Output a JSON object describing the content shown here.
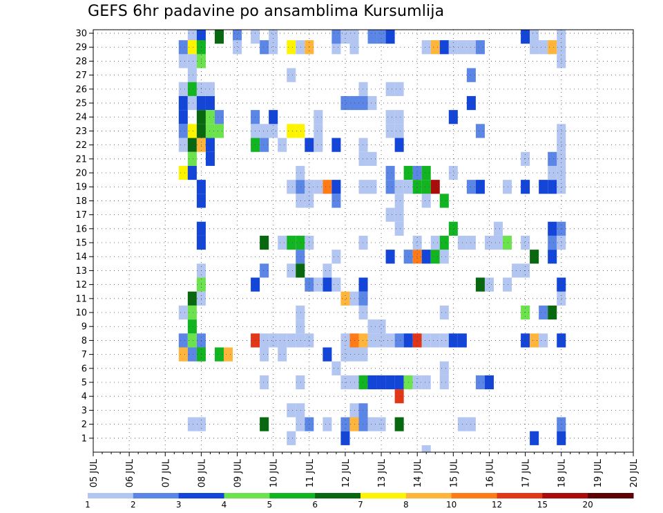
{
  "chart_data": {
    "type": "heatmap",
    "title": "GEFS 6hr padavine po ansamblima Kursumlija",
    "xlabel": "",
    "ylabel": "",
    "x_ticks": [
      "05 JUL",
      "06 JUL",
      "07 JUL",
      "08 JUL",
      "09 JUL",
      "10 JUL",
      "11 JUL",
      "12 JUL",
      "13 JUL",
      "14 JUL",
      "15 JUL",
      "16 JUL",
      "17 JUL",
      "18 JUL",
      "19 JUL",
      "20 JUL"
    ],
    "x_start_day": 5,
    "x_end_day": 20,
    "y_ticks": [
      1,
      2,
      3,
      4,
      5,
      6,
      7,
      8,
      9,
      10,
      11,
      12,
      13,
      14,
      15,
      16,
      17,
      18,
      19,
      20,
      21,
      22,
      23,
      24,
      25,
      26,
      27,
      28,
      29,
      30
    ],
    "ylim": [
      0,
      30
    ],
    "grid": true,
    "colorbar": {
      "placement": "bottom",
      "labels": [
        "1",
        "2",
        "3",
        "4",
        "5",
        "6",
        "7",
        "8",
        "10",
        "12",
        "15",
        "20"
      ],
      "colors": [
        "#b3c6f2",
        "#5b86e6",
        "#1346d8",
        "#6ce34e",
        "#13b421",
        "#08680f",
        "#fff400",
        "#ffb43c",
        "#ff7a18",
        "#e13617",
        "#a80d0c",
        "#5c0306"
      ]
    },
    "cells": [
      [
        29,
        3,
        1
      ],
      [
        28,
        8,
        1
      ],
      [
        27,
        6,
        1
      ],
      [
        26,
        2,
        1
      ],
      [
        26,
        7,
        3
      ],
      [
        22,
        8,
        1
      ],
      [
        22,
        13,
        1
      ],
      [
        22,
        1,
        1
      ],
      [
        30,
        11,
        2
      ],
      [
        29,
        11,
        1
      ],
      [
        29,
        29,
        1
      ],
      [
        27,
        29,
        1
      ],
      [
        27,
        30,
        2
      ],
      [
        28,
        30,
        1
      ],
      [
        29,
        30,
        1
      ],
      [
        29,
        25,
        2
      ],
      [
        28,
        25,
        2
      ],
      [
        28,
        1,
        3
      ],
      [
        11,
        30,
        1
      ],
      [
        12,
        30,
        3
      ],
      [
        14,
        30,
        6
      ],
      [
        16,
        30,
        2
      ],
      [
        16,
        29,
        1
      ],
      [
        22,
        27,
        1
      ],
      [
        19,
        29,
        2
      ],
      [
        20,
        29,
        1
      ],
      [
        22,
        29,
        7
      ],
      [
        23,
        29,
        1
      ],
      [
        24,
        29,
        8
      ],
      [
        10,
        28,
        1
      ],
      [
        10,
        29,
        2
      ],
      [
        10,
        26,
        1
      ],
      [
        10,
        25,
        3
      ],
      [
        10,
        24,
        3
      ],
      [
        10,
        23,
        2
      ],
      [
        10,
        22,
        1
      ],
      [
        10,
        20,
        7
      ],
      [
        11,
        27,
        1
      ],
      [
        10,
        10,
        1
      ],
      [
        11,
        29,
        7
      ],
      [
        11,
        28,
        1
      ],
      [
        11,
        26,
        5
      ],
      [
        11,
        25,
        1
      ],
      [
        11,
        22,
        6
      ],
      [
        11,
        21,
        4
      ],
      [
        11,
        20,
        3
      ],
      [
        10,
        8,
        2
      ],
      [
        11,
        11,
        6
      ],
      [
        10,
        7,
        8
      ],
      [
        11,
        7,
        2
      ],
      [
        10,
        8,
        3
      ],
      [
        11,
        8,
        4
      ],
      [
        11,
        9,
        5
      ],
      [
        11,
        23,
        7
      ],
      [
        11,
        2,
        1
      ],
      [
        11,
        8,
        4
      ],
      [
        11,
        10,
        4
      ],
      [
        11,
        11,
        6
      ],
      [
        12,
        8,
        2
      ],
      [
        12,
        25,
        3
      ],
      [
        11,
        -1,
        1
      ],
      [
        12,
        13,
        1
      ],
      [
        12,
        -1,
        1
      ],
      [
        12,
        28,
        4
      ],
      [
        12,
        29,
        5
      ],
      [
        12,
        25,
        5
      ],
      [
        12,
        23,
        6
      ],
      [
        12,
        22,
        8
      ],
      [
        12,
        24,
        6
      ],
      [
        12,
        19,
        3
      ],
      [
        12,
        18,
        3
      ],
      [
        12,
        16,
        3
      ],
      [
        12,
        15,
        3
      ],
      [
        12,
        12,
        4
      ],
      [
        12,
        11,
        1
      ],
      [
        12,
        7,
        5
      ],
      [
        12,
        2,
        1
      ],
      [
        12,
        26,
        1
      ],
      [
        13,
        25,
        3
      ],
      [
        12,
        24,
        5
      ],
      [
        13,
        24,
        4
      ],
      [
        13,
        23,
        4
      ],
      [
        14,
        23,
        4
      ],
      [
        14,
        24,
        2
      ],
      [
        13,
        22,
        3
      ],
      [
        13,
        21,
        3
      ],
      [
        13,
        26,
        1
      ],
      [
        14,
        7,
        5
      ],
      [
        15,
        7,
        8
      ],
      [
        16,
        30,
        1
      ],
      [
        16,
        29,
        1
      ],
      [
        18,
        30,
        1
      ],
      [
        18,
        24,
        2
      ],
      [
        18,
        23,
        1
      ],
      [
        19,
        23,
        1
      ],
      [
        18,
        22,
        5
      ],
      [
        18,
        12,
        3
      ],
      [
        18,
        8,
        10
      ],
      [
        19,
        22,
        2
      ],
      [
        19,
        15,
        6
      ],
      [
        19,
        13,
        2
      ],
      [
        19,
        5,
        1
      ],
      [
        19,
        2,
        6
      ],
      [
        19,
        8,
        1
      ],
      [
        19,
        7,
        1
      ],
      [
        20,
        30,
        1
      ],
      [
        20,
        23,
        1
      ],
      [
        20,
        24,
        3
      ],
      [
        20,
        8,
        1
      ],
      [
        21,
        8,
        1
      ],
      [
        21,
        7,
        1
      ],
      [
        21,
        15,
        1
      ],
      [
        21,
        22,
        1
      ],
      [
        22,
        23,
        7
      ],
      [
        23,
        23,
        7
      ],
      [
        22,
        15,
        5
      ],
      [
        23,
        15,
        5
      ],
      [
        22,
        19,
        1
      ],
      [
        23,
        19,
        2
      ],
      [
        24,
        19,
        1
      ],
      [
        23,
        20,
        1
      ],
      [
        23,
        18,
        1
      ],
      [
        24,
        18,
        1
      ],
      [
        23,
        14,
        2
      ],
      [
        23,
        13,
        6
      ],
      [
        24,
        12,
        2
      ],
      [
        23,
        10,
        1
      ],
      [
        24,
        8,
        1
      ],
      [
        23,
        9,
        1
      ],
      [
        23,
        8,
        1
      ],
      [
        22,
        8,
        1
      ],
      [
        22,
        3,
        1
      ],
      [
        23,
        3,
        1
      ],
      [
        23,
        2,
        1
      ],
      [
        24,
        2,
        2
      ],
      [
        23,
        5,
        1
      ],
      [
        24,
        22,
        3
      ],
      [
        25,
        22,
        1
      ],
      [
        25,
        23,
        1
      ],
      [
        24,
        15,
        1
      ],
      [
        25,
        24,
        1
      ],
      [
        25,
        19,
        1
      ],
      [
        26,
        19,
        9
      ],
      [
        27,
        19,
        3
      ],
      [
        27,
        18,
        2
      ],
      [
        27,
        22,
        3
      ],
      [
        26,
        12,
        3
      ],
      [
        27,
        12,
        1
      ],
      [
        26,
        13,
        1
      ],
      [
        27,
        14,
        1
      ],
      [
        25,
        12,
        1
      ],
      [
        27,
        30,
        3
      ],
      [
        28,
        11,
        8
      ],
      [
        28,
        8,
        3
      ],
      [
        28,
        7,
        1
      ],
      [
        28,
        5,
        1
      ],
      [
        28,
        2,
        2
      ],
      [
        29,
        3,
        12
      ],
      [
        29,
        2,
        8
      ],
      [
        29,
        5,
        1
      ],
      [
        29,
        7,
        1
      ],
      [
        29,
        8,
        9
      ],
      [
        30,
        8,
        8
      ],
      [
        30,
        7,
        1
      ],
      [
        30,
        2,
        2
      ],
      [
        30,
        3,
        2
      ],
      [
        30,
        5,
        5
      ],
      [
        30,
        10,
        1
      ],
      [
        30,
        15,
        1
      ],
      [
        30,
        19,
        1
      ],
      [
        30,
        25,
        2
      ],
      [
        30,
        21,
        1
      ],
      [
        30,
        22,
        1
      ],
      [
        31,
        21,
        1
      ],
      [
        31,
        25,
        1
      ],
      [
        30,
        26,
        1
      ],
      [
        31,
        30,
        2
      ],
      [
        32,
        30,
        2
      ],
      [
        33,
        30,
        3
      ],
      [
        31,
        19,
        1
      ],
      [
        31,
        9,
        1
      ],
      [
        31,
        8,
        1
      ],
      [
        31,
        5,
        3
      ],
      [
        31,
        2,
        1
      ],
      [
        30,
        12,
        3
      ],
      [
        32,
        5,
        3
      ],
      [
        33,
        5,
        3
      ],
      [
        34,
        5,
        3
      ],
      [
        32,
        2,
        1
      ],
      [
        32,
        8,
        1
      ],
      [
        32,
        9,
        1
      ],
      [
        33,
        30,
        2
      ],
      [
        33,
        26,
        1
      ],
      [
        33,
        24,
        1
      ],
      [
        33,
        23,
        1
      ],
      [
        33,
        20,
        2
      ],
      [
        33,
        19,
        2
      ],
      [
        33,
        14,
        3
      ],
      [
        33,
        8,
        1
      ],
      [
        34,
        8,
        2
      ],
      [
        35,
        8,
        3
      ],
      [
        33,
        17,
        1
      ],
      [
        34,
        16,
        1
      ],
      [
        34,
        22,
        3
      ],
      [
        34,
        23,
        1
      ],
      [
        34,
        4,
        10
      ],
      [
        34,
        5,
        5
      ],
      [
        34,
        2,
        6
      ],
      [
        34,
        24,
        1
      ],
      [
        34,
        26,
        1
      ],
      [
        34,
        19,
        1
      ],
      [
        34,
        18,
        1
      ],
      [
        34,
        17,
        1
      ],
      [
        35,
        20,
        5
      ],
      [
        35,
        19,
        1
      ],
      [
        35,
        14,
        2
      ],
      [
        35,
        5,
        4
      ],
      [
        35,
        8,
        3
      ],
      [
        36,
        8,
        10
      ],
      [
        36,
        14,
        9
      ],
      [
        36,
        20,
        2
      ],
      [
        36,
        19,
        5
      ],
      [
        36,
        15,
        1
      ],
      [
        36,
        5,
        1
      ],
      [
        37,
        29,
        1
      ],
      [
        37,
        8,
        1
      ],
      [
        37,
        14,
        3
      ],
      [
        37,
        20,
        5
      ],
      [
        37,
        19,
        5
      ],
      [
        37,
        18,
        1
      ],
      [
        37,
        0,
        1
      ],
      [
        37,
        5,
        1
      ],
      [
        38,
        29,
        8
      ],
      [
        38,
        19,
        11
      ],
      [
        38,
        14,
        5
      ],
      [
        38,
        8,
        1
      ],
      [
        39,
        8,
        1
      ],
      [
        38,
        15,
        1
      ],
      [
        39,
        14,
        1
      ],
      [
        39,
        29,
        3
      ],
      [
        39,
        5,
        1
      ],
      [
        39,
        6,
        1
      ],
      [
        40,
        8,
        3
      ],
      [
        40,
        24,
        3
      ],
      [
        40,
        20,
        1
      ],
      [
        40,
        16,
        5
      ],
      [
        39,
        18,
        5
      ],
      [
        39,
        15,
        5
      ],
      [
        40,
        8,
        3
      ],
      [
        41,
        8,
        3
      ],
      [
        39,
        10,
        1
      ],
      [
        39,
        29,
        1
      ],
      [
        40,
        29,
        1
      ],
      [
        41,
        2,
        1
      ],
      [
        42,
        2,
        1
      ],
      [
        41,
        15,
        1
      ],
      [
        42,
        15,
        1
      ],
      [
        41,
        29,
        1
      ],
      [
        42,
        29,
        1
      ],
      [
        42,
        19,
        2
      ],
      [
        43,
        19,
        3
      ],
      [
        42,
        27,
        2
      ],
      [
        42,
        25,
        3
      ],
      [
        43,
        29,
        2
      ],
      [
        43,
        5,
        2
      ],
      [
        44,
        5,
        3
      ],
      [
        43,
        12,
        6
      ],
      [
        43,
        23,
        2
      ],
      [
        44,
        12,
        1
      ],
      [
        44,
        15,
        1
      ],
      [
        45,
        15,
        1
      ],
      [
        46,
        15,
        4
      ],
      [
        45,
        16,
        1
      ],
      [
        46,
        19,
        1
      ],
      [
        46,
        12,
        1
      ],
      [
        47,
        13,
        1
      ],
      [
        48,
        13,
        1
      ],
      [
        48,
        10,
        4
      ],
      [
        48,
        15,
        1
      ],
      [
        48,
        19,
        3
      ],
      [
        48,
        21,
        1
      ],
      [
        48,
        30,
        3
      ],
      [
        49,
        30,
        1
      ],
      [
        49,
        29,
        1
      ],
      [
        49,
        14,
        6
      ],
      [
        50,
        29,
        1
      ],
      [
        51,
        29,
        8
      ],
      [
        48,
        8,
        3
      ],
      [
        49,
        8,
        8
      ],
      [
        50,
        8,
        1
      ],
      [
        49,
        1,
        3
      ],
      [
        50,
        10,
        2
      ],
      [
        51,
        10,
        6
      ],
      [
        51,
        15,
        2
      ],
      [
        51,
        16,
        3
      ],
      [
        51,
        14,
        3
      ],
      [
        51,
        19,
        3
      ],
      [
        50,
        19,
        3
      ],
      [
        51,
        20,
        1
      ],
      [
        52,
        1,
        3
      ],
      [
        52,
        2,
        2
      ],
      [
        52,
        8,
        3
      ],
      [
        52,
        11,
        1
      ],
      [
        52,
        12,
        3
      ],
      [
        52,
        15,
        1
      ],
      [
        52,
        16,
        2
      ],
      [
        52,
        19,
        1
      ],
      [
        52,
        20,
        1
      ],
      [
        52,
        21,
        1
      ],
      [
        52,
        22,
        1
      ],
      [
        52,
        23,
        1
      ],
      [
        52,
        28,
        1
      ],
      [
        52,
        29,
        1
      ],
      [
        52,
        30,
        1
      ],
      [
        51,
        21,
        2
      ]
    ]
  }
}
